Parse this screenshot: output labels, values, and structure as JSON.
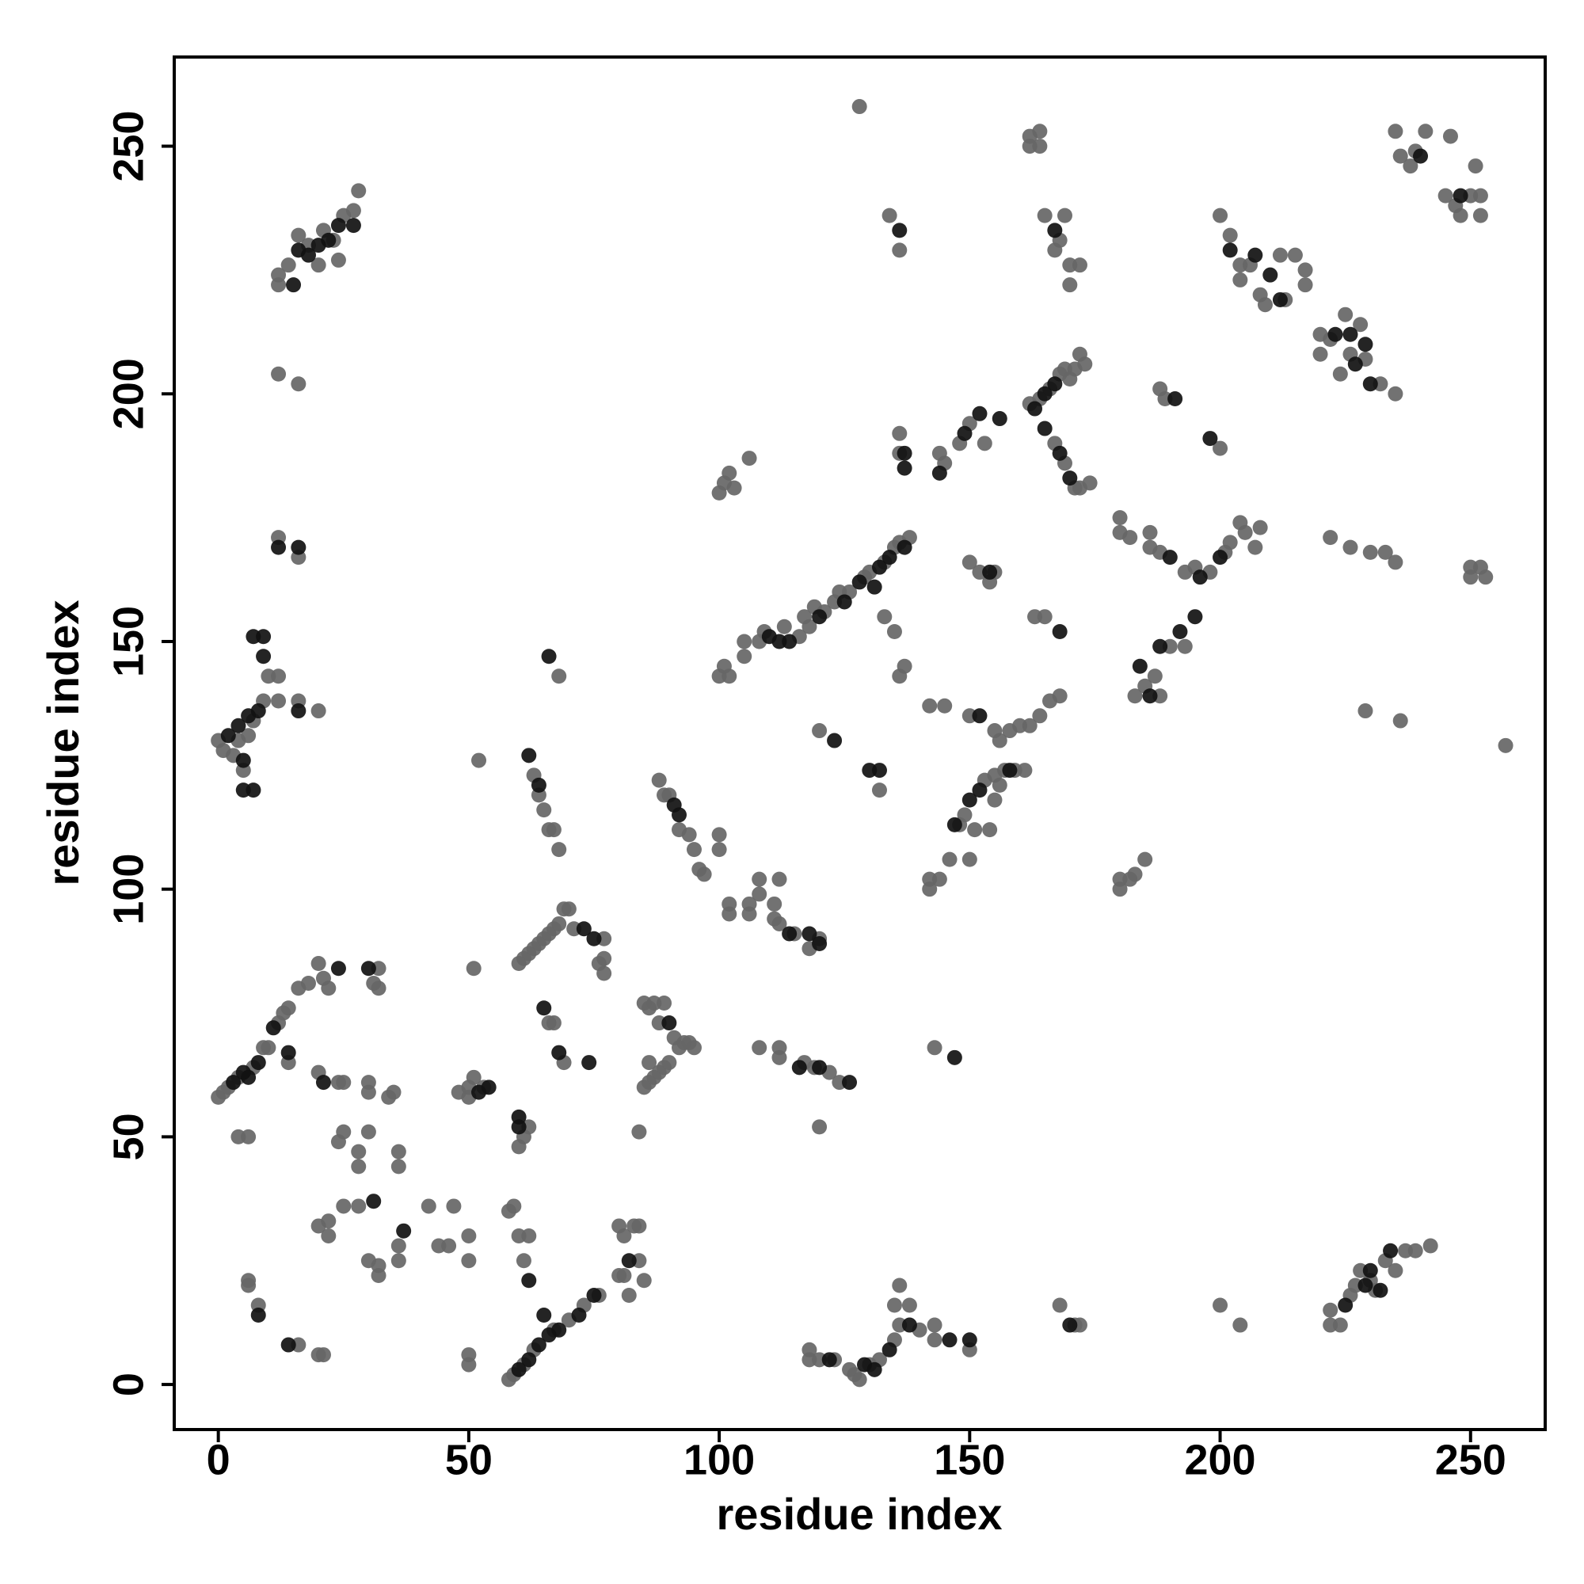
{
  "chart_data": {
    "type": "scatter",
    "x_label": "residue index",
    "y_label": "residue index",
    "xlim": [
      -8.8,
      264.9
    ],
    "ylim": [
      -9.1,
      268
    ],
    "xticks": [
      0,
      50,
      100,
      150,
      200,
      250
    ],
    "yticks": [
      0,
      50,
      100,
      150,
      200,
      250
    ],
    "grid": false,
    "series": [
      {
        "color": "#666666",
        "x": [
          12,
          12,
          14,
          16,
          18,
          20,
          21,
          23,
          24,
          25,
          27,
          28,
          12,
          16,
          12,
          16,
          0,
          1,
          3,
          4,
          5,
          6,
          7,
          9,
          10,
          12,
          12,
          16,
          20,
          0,
          1,
          2,
          4,
          7,
          9,
          10,
          12,
          13,
          14,
          14,
          16,
          18,
          20,
          21,
          22,
          20,
          24,
          25,
          31,
          32,
          32,
          30,
          30,
          4,
          6,
          25,
          24,
          28,
          28,
          30,
          36,
          36,
          34,
          35,
          20,
          22,
          22,
          25,
          28,
          32,
          30,
          32,
          36,
          36,
          42,
          44,
          46,
          47,
          6,
          6,
          8,
          16,
          20,
          21,
          50,
          50,
          51,
          53,
          48,
          51,
          52,
          50,
          50,
          50,
          50,
          58,
          59,
          61,
          63,
          67,
          70,
          73,
          76,
          61,
          60,
          58,
          59,
          62,
          61,
          62,
          60,
          80,
          81,
          83,
          84,
          84,
          81,
          82,
          80,
          85,
          60,
          61,
          62,
          63,
          64,
          65,
          66,
          67,
          68,
          69,
          70,
          71,
          76,
          77,
          77,
          77,
          84,
          66,
          67,
          69,
          85,
          86,
          87,
          88,
          89,
          91,
          92,
          93,
          94,
          95,
          85,
          86,
          87,
          88,
          89,
          90,
          86,
          63,
          64,
          65,
          66,
          67,
          68,
          68,
          88,
          89,
          90,
          92,
          94,
          95,
          96,
          97,
          100,
          100,
          102,
          102,
          106,
          106,
          108,
          108,
          111,
          111,
          112,
          112,
          115,
          118,
          120,
          108,
          112,
          112,
          117,
          119,
          122,
          124,
          120,
          118,
          118,
          120,
          123,
          126,
          127,
          128,
          130,
          132,
          135,
          136,
          135,
          136,
          138,
          140,
          143,
          143,
          150,
          143,
          168,
          171,
          172,
          200,
          204,
          222,
          222,
          224,
          226,
          227,
          228,
          230,
          231,
          233,
          235,
          237,
          239,
          242,
          100,
          101,
          102,
          105,
          105,
          108,
          109,
          113,
          116,
          117,
          118,
          119,
          121,
          123,
          124,
          126,
          129,
          130,
          133,
          135,
          136,
          138,
          132,
          120,
          100,
          101,
          102,
          103,
          106,
          136,
          136,
          144,
          145,
          148,
          150,
          153,
          133,
          135,
          136,
          137,
          142,
          145,
          150,
          155,
          156,
          158,
          160,
          162,
          164,
          166,
          168,
          134,
          136,
          128,
          142,
          142,
          144,
          146,
          148,
          149,
          153,
          155,
          156,
          157,
          159,
          161,
          150,
          151,
          154,
          155,
          150,
          152,
          154,
          155,
          163,
          165,
          162,
          164,
          166,
          168,
          169,
          170,
          171,
          172,
          173,
          167,
          169,
          171,
          172,
          174,
          162,
          162,
          164,
          164,
          165,
          167,
          168,
          170,
          170,
          172,
          169,
          180,
          180,
          182,
          183,
          185,
          183,
          185,
          187,
          188,
          190,
          193,
          180,
          182,
          186,
          188,
          193,
          195,
          198,
          201,
          202,
          204,
          205,
          208,
          207,
          180,
          186,
          188,
          189,
          200,
          200,
          202,
          204,
          204,
          206,
          208,
          209,
          212,
          213,
          215,
          217,
          217,
          220,
          220,
          222,
          224,
          225,
          226,
          228,
          229,
          232,
          235,
          222,
          226,
          230,
          233,
          235,
          229,
          236,
          257,
          250,
          250,
          252,
          253,
          235,
          236,
          238,
          239,
          241,
          246,
          245,
          247,
          250,
          251,
          252,
          252,
          248
        ],
        "values": [
          222,
          224,
          226,
          232,
          230,
          226,
          233,
          231,
          227,
          236,
          237,
          241,
          204,
          202,
          171,
          167,
          130,
          128,
          127,
          130,
          124,
          131,
          134,
          138,
          143,
          143,
          138,
          138,
          136,
          58,
          59,
          60,
          62,
          64,
          68,
          68,
          73,
          75,
          76,
          65,
          80,
          81,
          85,
          82,
          80,
          63,
          61,
          61,
          81,
          84,
          80,
          61,
          59,
          50,
          50,
          51,
          49,
          47,
          44,
          51,
          47,
          44,
          58,
          59,
          32,
          30,
          33,
          36,
          36,
          24,
          25,
          22,
          28,
          25,
          36,
          28,
          28,
          36,
          21,
          20,
          16,
          8,
          6,
          6,
          58,
          60,
          62,
          60,
          59,
          84,
          126,
          30,
          25,
          6,
          4,
          1,
          2,
          4,
          7,
          11,
          13,
          16,
          18,
          25,
          30,
          35,
          36,
          30,
          50,
          52,
          48,
          32,
          30,
          32,
          32,
          25,
          22,
          18,
          22,
          21,
          85,
          86,
          87,
          88,
          89,
          90,
          91,
          92,
          93,
          96,
          96,
          92,
          85,
          86,
          83,
          90,
          51,
          73,
          73,
          65,
          77,
          76,
          77,
          73,
          77,
          70,
          68,
          69,
          69,
          68,
          60,
          61,
          62,
          63,
          64,
          65,
          65,
          123,
          119,
          116,
          112,
          112,
          108,
          143,
          122,
          119,
          119,
          112,
          111,
          108,
          104,
          103,
          108,
          111,
          97,
          95,
          97,
          95,
          99,
          102,
          94,
          97,
          102,
          93,
          91,
          88,
          90,
          68,
          68,
          66,
          65,
          64,
          63,
          61,
          52,
          7,
          5,
          5,
          5,
          3,
          2,
          1,
          4,
          5,
          9,
          12,
          16,
          20,
          16,
          11,
          12,
          9,
          7,
          68,
          16,
          12,
          12,
          16,
          12,
          12,
          15,
          12,
          18,
          20,
          23,
          21,
          19,
          25,
          23,
          27,
          27,
          28,
          143,
          145,
          143,
          147,
          150,
          150,
          152,
          153,
          151,
          155,
          153,
          157,
          156,
          158,
          160,
          160,
          163,
          164,
          166,
          169,
          170,
          171,
          120,
          132,
          180,
          182,
          184,
          181,
          187,
          192,
          188,
          188,
          186,
          190,
          194,
          190,
          155,
          152,
          143,
          145,
          137,
          137,
          135,
          132,
          130,
          132,
          133,
          133,
          135,
          138,
          139,
          236,
          229,
          258,
          100,
          102,
          102,
          106,
          113,
          115,
          122,
          123,
          121,
          124,
          124,
          124,
          106,
          112,
          112,
          118,
          166,
          164,
          162,
          164,
          155,
          155,
          198,
          199,
          201,
          204,
          205,
          203,
          205,
          208,
          206,
          190,
          186,
          181,
          181,
          182,
          250,
          252,
          253,
          250,
          236,
          229,
          231,
          226,
          222,
          226,
          236,
          100,
          102,
          102,
          103,
          106,
          139,
          141,
          143,
          139,
          149,
          149,
          172,
          171,
          169,
          168,
          164,
          165,
          164,
          168,
          170,
          174,
          172,
          173,
          169,
          175,
          172,
          201,
          199,
          189,
          236,
          232,
          226,
          223,
          226,
          220,
          218,
          228,
          219,
          228,
          225,
          222,
          212,
          208,
          211,
          204,
          216,
          208,
          214,
          207,
          202,
          200,
          171,
          169,
          168,
          168,
          166,
          136,
          134,
          129,
          165,
          163,
          165,
          163,
          253,
          248,
          246,
          249,
          253,
          252,
          240,
          238,
          240,
          246,
          240,
          236,
          236
        ]
      },
      {
        "color": "#111111",
        "x": [
          15,
          16,
          18,
          20,
          22,
          24,
          27,
          12,
          16,
          2,
          4,
          5,
          5,
          6,
          7,
          9,
          9,
          8,
          16,
          7,
          3,
          5,
          6,
          8,
          11,
          14,
          24,
          21,
          30,
          31,
          37,
          8,
          14,
          52,
          54,
          60,
          62,
          64,
          66,
          68,
          72,
          75,
          65,
          62,
          60,
          60,
          82,
          73,
          75,
          65,
          68,
          74,
          90,
          62,
          64,
          66,
          91,
          92,
          114,
          118,
          120,
          116,
          120,
          126,
          122,
          129,
          131,
          134,
          138,
          146,
          150,
          147,
          170,
          225,
          229,
          230,
          234,
          232,
          110,
          112,
          114,
          120,
          125,
          128,
          131,
          132,
          134,
          137,
          123,
          130,
          132,
          137,
          144,
          149,
          152,
          156,
          137,
          147,
          150,
          152,
          136,
          152,
          158,
          163,
          165,
          167,
          165,
          168,
          170,
          167,
          154,
          168,
          184,
          188,
          192,
          195,
          190,
          196,
          200,
          186,
          191,
          198,
          202,
          207,
          210,
          212,
          223,
          226,
          227,
          229,
          230,
          240,
          248
        ],
        "values": [
          222,
          229,
          228,
          230,
          231,
          234,
          234,
          169,
          169,
          131,
          133,
          126,
          120,
          135,
          151,
          151,
          147,
          136,
          136,
          120,
          61,
          63,
          62,
          65,
          72,
          67,
          84,
          61,
          84,
          37,
          31,
          14,
          8,
          59,
          60,
          3,
          5,
          8,
          10,
          11,
          14,
          18,
          14,
          21,
          54,
          52,
          25,
          92,
          90,
          76,
          67,
          65,
          73,
          127,
          121,
          147,
          117,
          115,
          91,
          91,
          89,
          64,
          64,
          61,
          5,
          4,
          3,
          7,
          12,
          9,
          9,
          66,
          12,
          16,
          20,
          23,
          27,
          19,
          151,
          150,
          150,
          155,
          158,
          162,
          161,
          165,
          167,
          169,
          130,
          124,
          124,
          185,
          184,
          192,
          196,
          195,
          188,
          113,
          118,
          120,
          233,
          135,
          124,
          197,
          200,
          202,
          193,
          188,
          183,
          233,
          164,
          152,
          145,
          149,
          152,
          155,
          167,
          163,
          167,
          139,
          199,
          191,
          229,
          228,
          224,
          219,
          212,
          212,
          206,
          210,
          202,
          248,
          240
        ]
      }
    ]
  }
}
